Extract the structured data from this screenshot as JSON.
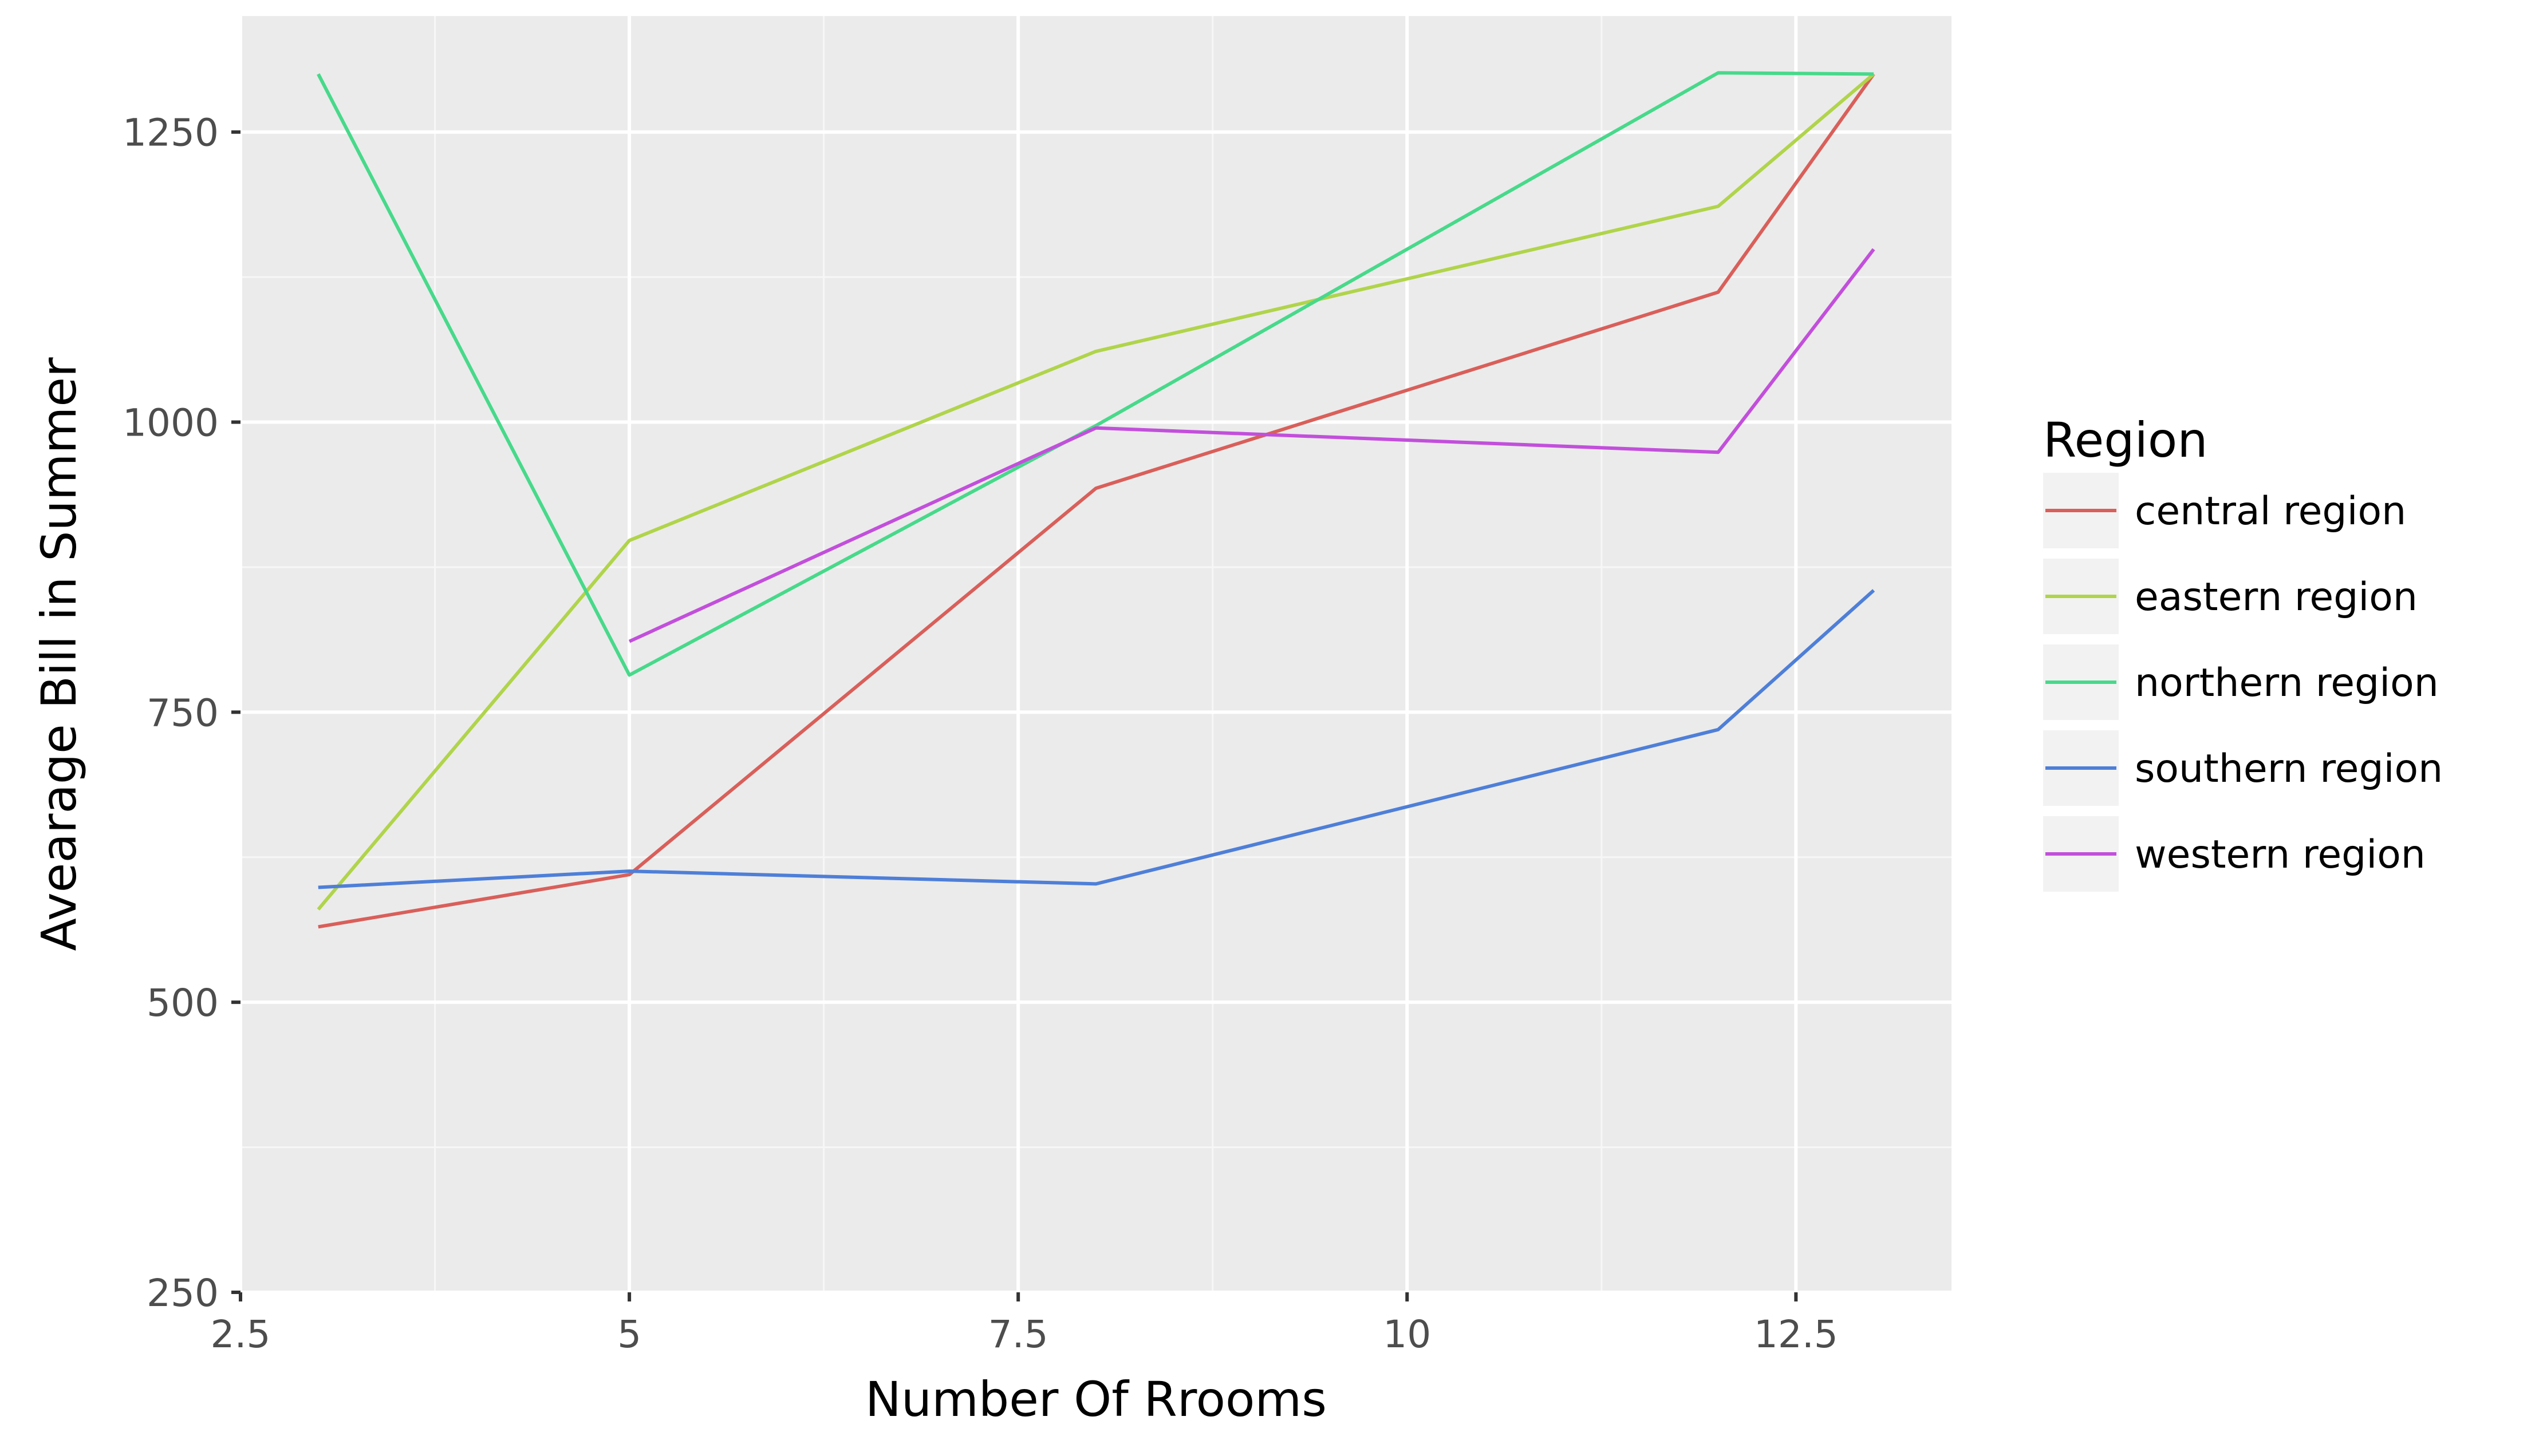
{
  "chart_data": {
    "type": "line",
    "xlabel": "Number Of Rrooms",
    "ylabel": "Avearage Bill in Summer",
    "xlim": [
      2.5,
      13.5
    ],
    "ylim": [
      250,
      1350
    ],
    "x_ticks": [
      2.5,
      5,
      7.5,
      10,
      12.5
    ],
    "x_tick_labels": [
      "2.5",
      "5",
      "7.5",
      "10",
      "12.5"
    ],
    "y_ticks": [
      250,
      500,
      750,
      1000,
      1250
    ],
    "y_tick_labels": [
      "250",
      "500",
      "750",
      "1000",
      "1250"
    ],
    "grid": true,
    "legend": {
      "title": "Region",
      "position": "right"
    },
    "series": [
      {
        "name": "central region",
        "color": "#d95f5a",
        "x": [
          3,
          5,
          8,
          12,
          13
        ],
        "y": [
          565,
          610,
          943,
          1112,
          1300
        ]
      },
      {
        "name": "eastern region",
        "color": "#b0d44a",
        "x": [
          3,
          5,
          8,
          12,
          13
        ],
        "y": [
          580,
          898,
          1061,
          1186,
          1300
        ]
      },
      {
        "name": "northern region",
        "color": "#47d98a",
        "x": [
          3,
          5,
          8,
          12,
          13
        ],
        "y": [
          1300,
          782,
          997,
          1301,
          1300
        ]
      },
      {
        "name": "southern region",
        "color": "#4e7fd8",
        "x": [
          3,
          5,
          8,
          12,
          13
        ],
        "y": [
          599,
          613,
          602,
          735,
          855
        ]
      },
      {
        "name": "western region",
        "color": "#c24fdb",
        "x": [
          5,
          8,
          12,
          13
        ],
        "y": [
          811,
          995,
          974,
          1149
        ]
      }
    ]
  }
}
